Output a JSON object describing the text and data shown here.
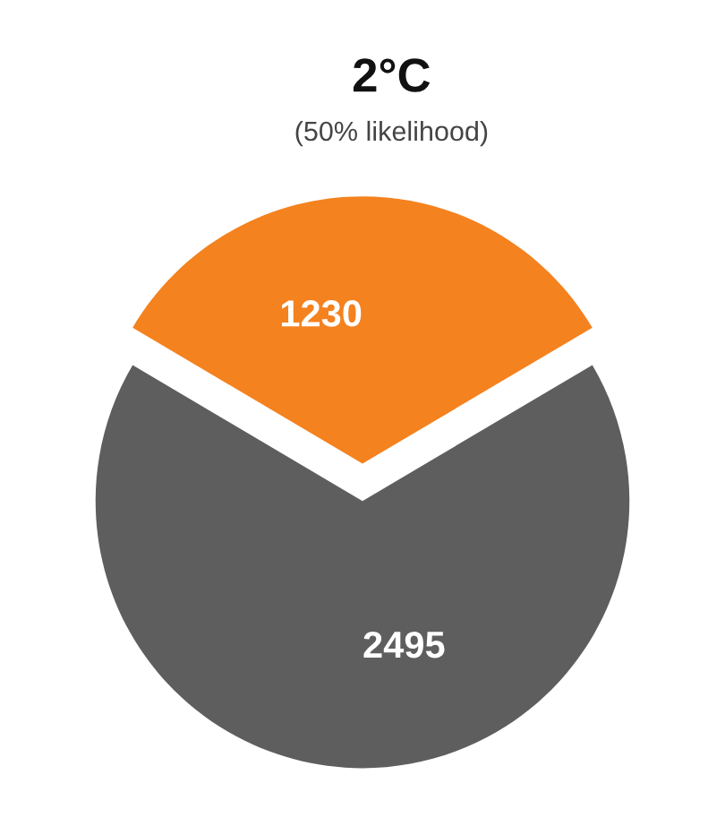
{
  "chart_data": {
    "type": "pie",
    "title": "2°C",
    "subtitle": "(50% likelihood)",
    "categories": [
      null,
      null
    ],
    "values": [
      1230,
      2495
    ],
    "colors": [
      "#f4821f",
      "#5e5e5e"
    ],
    "data_labels": true
  }
}
